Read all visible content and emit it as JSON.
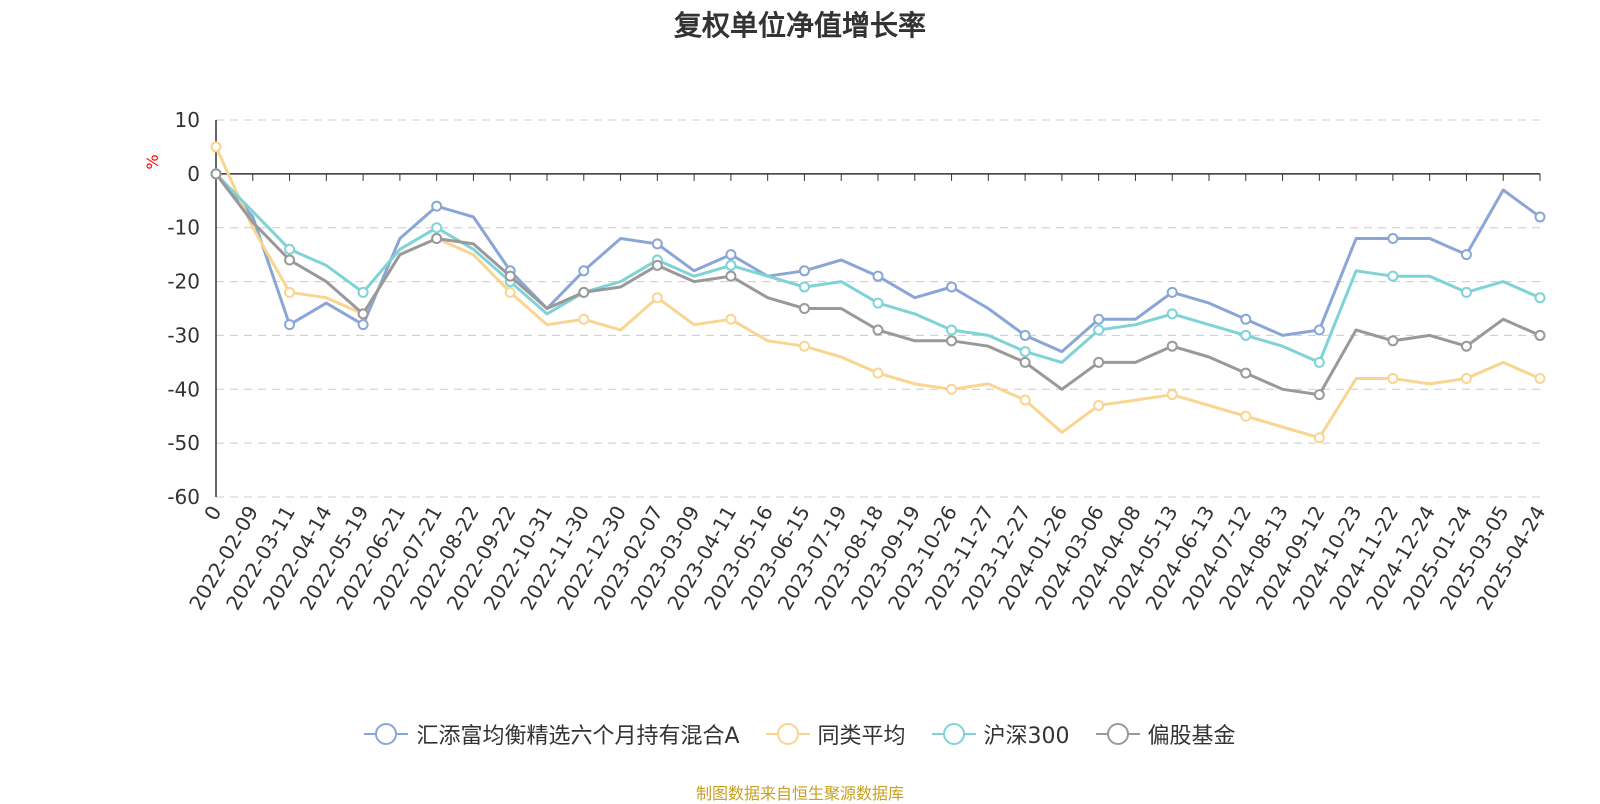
{
  "chart_data": {
    "type": "line",
    "title": "复权单位净值增长率",
    "ylabel": "%",
    "ylim": [
      -60,
      10
    ],
    "yticks": [
      10,
      0,
      -10,
      -20,
      -30,
      -40,
      -50,
      -60
    ],
    "grid": true,
    "legend_position": "bottom",
    "source": "制图数据来自恒生聚源数据库",
    "x": [
      "0",
      "2022-02-09",
      "2022-03-11",
      "2022-04-14",
      "2022-05-19",
      "2022-06-21",
      "2022-07-21",
      "2022-08-22",
      "2022-09-22",
      "2022-10-31",
      "2022-11-30",
      "2022-12-30",
      "2023-02-07",
      "2023-03-09",
      "2023-04-11",
      "2023-05-16",
      "2023-06-15",
      "2023-07-19",
      "2023-08-18",
      "2023-09-19",
      "2023-10-26",
      "2023-11-27",
      "2023-12-27",
      "2024-01-26",
      "2024-03-06",
      "2024-04-08",
      "2024-05-13",
      "2024-06-13",
      "2024-07-12",
      "2024-08-13",
      "2024-09-12",
      "2024-10-23",
      "2024-11-22",
      "2024-12-24",
      "2025-01-24",
      "2025-03-05",
      "2025-04-24"
    ],
    "series": [
      {
        "name": "汇添富均衡精选六个月持有混合A",
        "color": "#8aa6d6",
        "values": [
          0,
          -8,
          -28,
          -24,
          -28,
          -12,
          -6,
          -8,
          -18,
          -25,
          -18,
          -12,
          -13,
          -18,
          -15,
          -19,
          -18,
          -16,
          -19,
          -23,
          -21,
          -25,
          -30,
          -33,
          -27,
          -27,
          -22,
          -24,
          -27,
          -30,
          -29,
          -12,
          -12,
          -12,
          -15,
          -3,
          -8
        ]
      },
      {
        "name": "同类平均",
        "color": "#f9d590",
        "values": [
          5,
          -10,
          -22,
          -23,
          -26,
          -15,
          -12,
          -15,
          -22,
          -28,
          -27,
          -29,
          -23,
          -28,
          -27,
          -31,
          -32,
          -34,
          -37,
          -39,
          -40,
          -39,
          -42,
          -48,
          -43,
          -42,
          -41,
          -43,
          -45,
          -47,
          -49,
          -38,
          -38,
          -39,
          -38,
          -35,
          -38
        ]
      },
      {
        "name": "沪深300",
        "color": "#7fd3d6",
        "values": [
          0,
          -7,
          -14,
          -17,
          -22,
          -14,
          -10,
          -14,
          -20,
          -26,
          -22,
          -20,
          -16,
          -19,
          -17,
          -19,
          -21,
          -20,
          -24,
          -26,
          -29,
          -30,
          -33,
          -35,
          -29,
          -28,
          -26,
          -28,
          -30,
          -32,
          -35,
          -18,
          -19,
          -19,
          -22,
          -20,
          -23
        ]
      },
      {
        "name": "偏股基金",
        "color": "#999999",
        "values": [
          0,
          -9,
          -16,
          -20,
          -26,
          -15,
          -12,
          -13,
          -19,
          -25,
          -22,
          -21,
          -17,
          -20,
          -19,
          -23,
          -25,
          -25,
          -29,
          -31,
          -31,
          -32,
          -35,
          -40,
          -35,
          -35,
          -32,
          -34,
          -37,
          -40,
          -41,
          -29,
          -31,
          -30,
          -32,
          -27,
          -30
        ]
      }
    ]
  }
}
